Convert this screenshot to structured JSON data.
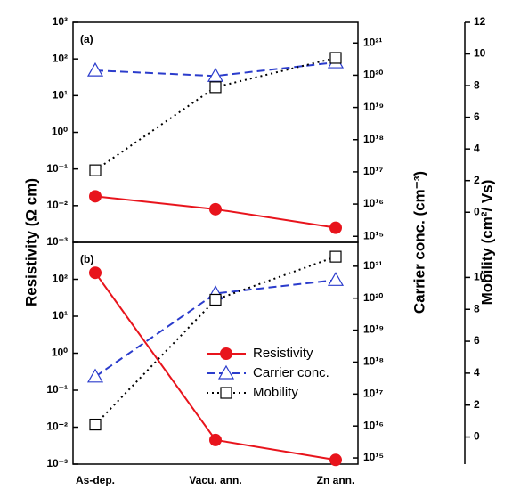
{
  "chart_data": {
    "type": "line",
    "categories": [
      "As-dep.",
      "Vacu. ann.",
      "Zn ann."
    ],
    "ylabel": "Resistivity (Ω cm)",
    "y2label": "Carrier conc. (cm⁻³)",
    "y3label": "Mobility (cm²/ Vs)",
    "ylog": true,
    "y2log": true,
    "legend": "center right",
    "series": [
      {
        "name": "Resistivity",
        "color": "#e8141c",
        "marker": "filled-circle",
        "dash": "solid",
        "axis": "y"
      },
      {
        "name": "Carrier conc.",
        "color": "#2b3ccc",
        "marker": "open-triangle",
        "dash": "dashed",
        "axis": "y2"
      },
      {
        "name": "Mobility",
        "color": "#000000",
        "marker": "open-square",
        "dash": "dotted",
        "axis": "y3"
      }
    ],
    "panels": [
      {
        "label": "(a)",
        "ylim": [
          0.001,
          1000
        ],
        "yticks": [
          {
            "value": 1000,
            "label": "10³"
          },
          {
            "value": 100,
            "label": "10²"
          },
          {
            "value": 10,
            "label": "10¹"
          },
          {
            "value": 1,
            "label": "10⁰"
          },
          {
            "value": 0.1,
            "label": "10⁻¹"
          },
          {
            "value": 0.01,
            "label": "10⁻²"
          },
          {
            "value": 0.001,
            "label": "10⁻³"
          }
        ],
        "y2lim": [
          650000000000000.0,
          4.4e+21
        ],
        "y2ticks": [
          {
            "value": 1e+21,
            "label": "10²¹"
          },
          {
            "value": 1e+20,
            "label": "10²⁰"
          },
          {
            "value": 1e+19,
            "label": "10¹⁹"
          },
          {
            "value": 1e+18,
            "label": "10¹⁸"
          },
          {
            "value": 1e+17,
            "label": "10¹⁷"
          },
          {
            "value": 1e+16,
            "label": "10¹⁶"
          },
          {
            "value": 1000000000000000.0,
            "label": "10¹⁵"
          }
        ],
        "y3lim": [
          -1.9,
          12
        ],
        "y3ticks": [
          0,
          2,
          4,
          6,
          8,
          10,
          12
        ],
        "series": [
          {
            "values": [
              0.018,
              0.008,
              0.0025
            ]
          },
          {
            "values": [
              1.4e+20,
              9.5e+19,
              2.5e+20
            ]
          },
          {
            "values": [
              2.65,
              7.9,
              9.75
            ]
          }
        ]
      },
      {
        "label": "(b)",
        "ylim": [
          0.001,
          1000
        ],
        "yticks": [
          {
            "value": 100,
            "label": "10²"
          },
          {
            "value": 10,
            "label": "10¹"
          },
          {
            "value": 1,
            "label": "10⁰"
          },
          {
            "value": 0.1,
            "label": "10⁻¹"
          },
          {
            "value": 0.01,
            "label": "10⁻²"
          },
          {
            "value": 0.001,
            "label": "10⁻³"
          }
        ],
        "y2lim": [
          640000000000000.0,
          5.6e+21
        ],
        "y2ticks": [
          {
            "value": 1e+21,
            "label": "10²¹"
          },
          {
            "value": 1e+20,
            "label": "10²⁰"
          },
          {
            "value": 1e+19,
            "label": "10¹⁹"
          },
          {
            "value": 1e+18,
            "label": "10¹⁸"
          },
          {
            "value": 1e+17,
            "label": "10¹⁷"
          },
          {
            "value": 1e+16,
            "label": "10¹⁶"
          },
          {
            "value": 1000000000000000.0,
            "label": "10¹⁵"
          }
        ],
        "y3lim": [
          -1.7,
          12.2
        ],
        "y3ticks": [
          0,
          2,
          4,
          6,
          8,
          10
        ],
        "series": [
          {
            "values": [
              150,
              0.0045,
              0.0013
            ]
          },
          {
            "values": [
              3.5e+17,
              1.4e+20,
              3.7e+20
            ]
          },
          {
            "values": [
              0.78,
              8.6,
              11.3
            ]
          }
        ]
      }
    ]
  }
}
